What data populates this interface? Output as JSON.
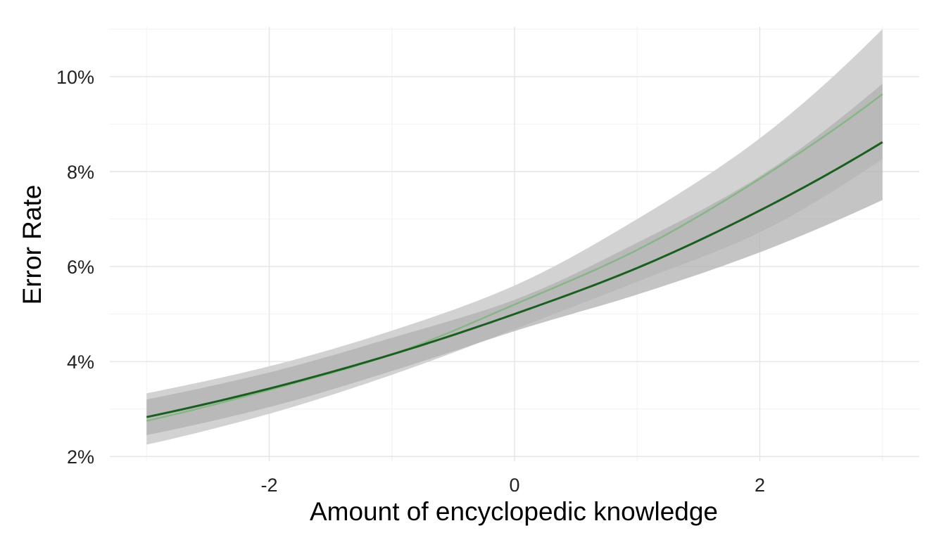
{
  "chart_data": {
    "type": "line",
    "title": "",
    "xlabel": "Amount of encyclopedic knowledge",
    "ylabel": "Error Rate",
    "xlim": [
      -3.3,
      3.3
    ],
    "ylim": [
      0.019,
      0.1105
    ],
    "x_ticks": [
      -2,
      0,
      2
    ],
    "x_tick_labels": [
      "-2",
      "0",
      "2"
    ],
    "y_ticks": [
      0.02,
      0.04,
      0.06,
      0.08,
      0.1
    ],
    "y_tick_labels": [
      "2%",
      "4%",
      "6%",
      "8%",
      "10%"
    ],
    "grid": true,
    "legend": "none",
    "colors": {
      "series_a_line": "#1a5e20",
      "series_b_line": "#86b686",
      "wide_band": "#d2d2d2",
      "narrow_band": "#b0b0b0",
      "grid_major": "#e4e4e4",
      "grid_minor": "#f3f3f3"
    },
    "series": [
      {
        "x": [
          -3,
          -2,
          -1,
          0,
          1,
          2,
          3
        ],
        "y": [
          0.0283,
          0.0343,
          0.0415,
          0.05,
          0.0597,
          0.0718,
          0.0862
        ],
        "lower": [
          0.0245,
          0.0304,
          0.038,
          0.0464,
          0.0541,
          0.063,
          0.074
        ],
        "upper": [
          0.032,
          0.0377,
          0.045,
          0.053,
          0.065,
          0.079,
          0.0985
        ]
      },
      {
        "x": [
          -3,
          -2,
          -1,
          0,
          1,
          2,
          3
        ],
        "y": [
          0.0275,
          0.034,
          0.0415,
          0.052,
          0.0635,
          0.0785,
          0.0963
        ],
        "lower": [
          0.0225,
          0.029,
          0.0372,
          0.0468,
          0.0568,
          0.0672,
          0.0826
        ],
        "upper": [
          0.0333,
          0.039,
          0.0465,
          0.056,
          0.07,
          0.087,
          0.11
        ]
      }
    ]
  }
}
